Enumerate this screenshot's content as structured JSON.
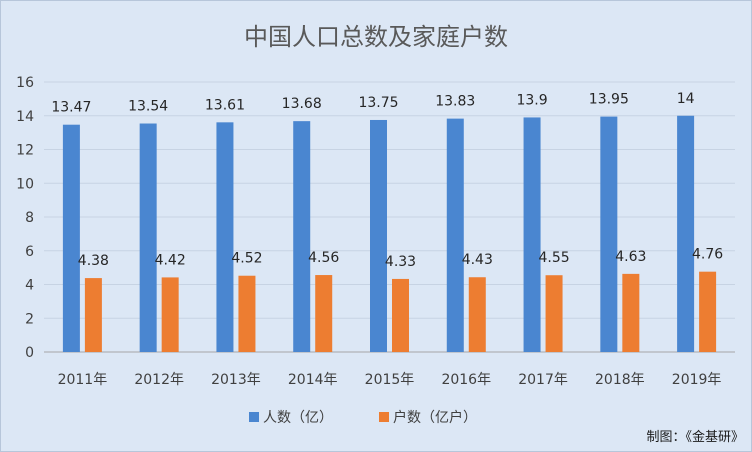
{
  "chart_data": {
    "type": "bar",
    "title": "中国人口总数及家庭户数",
    "categories": [
      "2011年",
      "2012年",
      "2013年",
      "2014年",
      "2015年",
      "2016年",
      "2017年",
      "2018年",
      "2019年"
    ],
    "series": [
      {
        "name": "人数（亿）",
        "values": [
          13.47,
          13.54,
          13.61,
          13.68,
          13.75,
          13.83,
          13.9,
          13.95,
          14
        ],
        "color": "#4a86d0"
      },
      {
        "name": "户数（亿户）",
        "values": [
          4.38,
          4.42,
          4.52,
          4.56,
          4.33,
          4.43,
          4.55,
          4.63,
          4.76
        ],
        "color": "#ed7d31"
      }
    ],
    "yticks": [
      "0",
      "2",
      "4",
      "6",
      "8",
      "10",
      "12",
      "14",
      "16"
    ],
    "ylim": [
      0,
      16
    ],
    "grid": true,
    "legend": "bottom",
    "xlabel": "",
    "ylabel": ""
  },
  "credit": "制图：《金基研》"
}
